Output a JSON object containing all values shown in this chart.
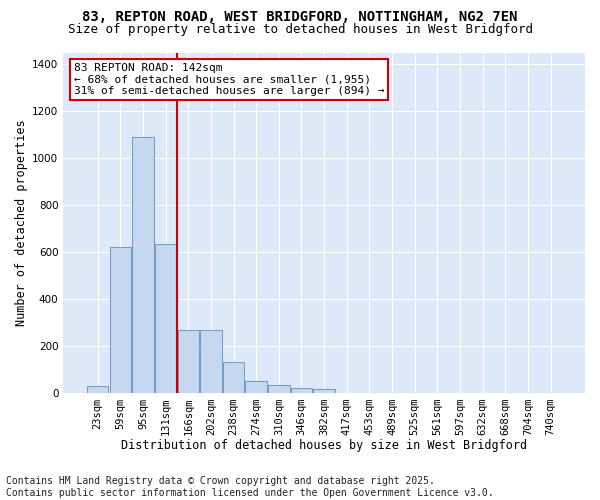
{
  "title_line1": "83, REPTON ROAD, WEST BRIDGFORD, NOTTINGHAM, NG2 7EN",
  "title_line2": "Size of property relative to detached houses in West Bridgford",
  "xlabel": "Distribution of detached houses by size in West Bridgford",
  "ylabel": "Number of detached properties",
  "footnote_line1": "Contains HM Land Registry data © Crown copyright and database right 2025.",
  "footnote_line2": "Contains public sector information licensed under the Open Government Licence v3.0.",
  "categories": [
    "23sqm",
    "59sqm",
    "95sqm",
    "131sqm",
    "166sqm",
    "202sqm",
    "238sqm",
    "274sqm",
    "310sqm",
    "346sqm",
    "382sqm",
    "417sqm",
    "453sqm",
    "489sqm",
    "525sqm",
    "561sqm",
    "597sqm",
    "632sqm",
    "668sqm",
    "704sqm",
    "740sqm"
  ],
  "bar_values": [
    28,
    620,
    1090,
    635,
    270,
    270,
    130,
    50,
    35,
    20,
    18,
    0,
    0,
    0,
    0,
    0,
    0,
    0,
    0,
    0,
    0
  ],
  "bar_color": "#c5d8f0",
  "bar_edge_color": "#6090c0",
  "vline_x": 3.5,
  "vline_color": "#cc0000",
  "annotation_text": "83 REPTON ROAD: 142sqm\n← 68% of detached houses are smaller (1,955)\n31% of semi-detached houses are larger (894) →",
  "annotation_box_facecolor": "white",
  "annotation_box_edgecolor": "#cc0000",
  "ylim": [
    0,
    1450
  ],
  "bg_color": "#dde8f8",
  "grid_color": "white",
  "title_fontsize": 10,
  "subtitle_fontsize": 9,
  "axis_label_fontsize": 8.5,
  "tick_fontsize": 7.5,
  "annotation_fontsize": 8,
  "footnote_fontsize": 7
}
